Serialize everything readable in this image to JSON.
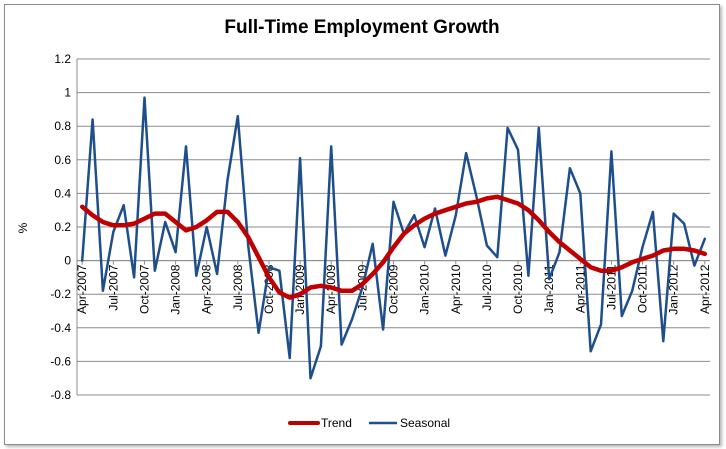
{
  "chart_data": {
    "type": "line",
    "title": "Full-Time Employment Growth",
    "xlabel": "",
    "ylabel": "%",
    "ylim": [
      -0.8,
      1.2
    ],
    "yticks": [
      -0.8,
      -0.6,
      -0.4,
      -0.2,
      0,
      0.2,
      0.4,
      0.6,
      0.8,
      1,
      1.2
    ],
    "ytick_labels": [
      "-0.8",
      "-0.6",
      "-0.4",
      "-0.2",
      "0",
      "0.2",
      "0.4",
      "0.6",
      "0.8",
      "1",
      "1.2"
    ],
    "grid": "horizontal",
    "legend_position": "bottom",
    "x": [
      "Apr-2007",
      "May-2007",
      "Jun-2007",
      "Jul-2007",
      "Aug-2007",
      "Sep-2007",
      "Oct-2007",
      "Nov-2007",
      "Dec-2007",
      "Jan-2008",
      "Feb-2008",
      "Mar-2008",
      "Apr-2008",
      "May-2008",
      "Jun-2008",
      "Jul-2008",
      "Aug-2008",
      "Sep-2008",
      "Oct-2008",
      "Nov-2008",
      "Dec-2008",
      "Jan-2009",
      "Feb-2009",
      "Mar-2009",
      "Apr-2009",
      "May-2009",
      "Jun-2009",
      "Jul-2009",
      "Aug-2009",
      "Sep-2009",
      "Oct-2009",
      "Nov-2009",
      "Dec-2009",
      "Jan-2010",
      "Feb-2010",
      "Mar-2010",
      "Apr-2010",
      "May-2010",
      "Jun-2010",
      "Jul-2010",
      "Aug-2010",
      "Sep-2010",
      "Oct-2010",
      "Nov-2010",
      "Dec-2010",
      "Jan-2011",
      "Feb-2011",
      "Mar-2011",
      "Apr-2011",
      "May-2011",
      "Jun-2011",
      "Jul-2011",
      "Aug-2011",
      "Sep-2011",
      "Oct-2011",
      "Nov-2011",
      "Dec-2011",
      "Jan-2012",
      "Feb-2012",
      "Mar-2012",
      "Apr-2012"
    ],
    "xtick_labels": [
      "Apr-2007",
      "Jul-2007",
      "Oct-2007",
      "Jan-2008",
      "Apr-2008",
      "Jul-2008",
      "Oct-2008",
      "Jan-2009",
      "Apr-2009",
      "Jul-2009",
      "Oct-2009",
      "Jan-2010",
      "Apr-2010",
      "Jul-2010",
      "Oct-2010",
      "Jan-2011",
      "Apr-2011",
      "Jul-2011",
      "Oct-2011",
      "Jan-2012",
      "Apr-2012"
    ],
    "series": [
      {
        "name": "Trend",
        "color": "#c00000",
        "values": [
          0.32,
          0.27,
          0.23,
          0.21,
          0.21,
          0.22,
          0.25,
          0.28,
          0.28,
          0.23,
          0.18,
          0.2,
          0.24,
          0.29,
          0.29,
          0.23,
          0.14,
          0.02,
          -0.1,
          -0.19,
          -0.22,
          -0.2,
          -0.16,
          -0.15,
          -0.16,
          -0.18,
          -0.18,
          -0.14,
          -0.08,
          -0.01,
          0.08,
          0.16,
          0.21,
          0.25,
          0.28,
          0.3,
          0.32,
          0.34,
          0.35,
          0.37,
          0.38,
          0.36,
          0.34,
          0.3,
          0.24,
          0.17,
          0.11,
          0.06,
          0.01,
          -0.04,
          -0.06,
          -0.06,
          -0.04,
          -0.01,
          0.01,
          0.03,
          0.06,
          0.07,
          0.07,
          0.06,
          0.04
        ]
      },
      {
        "name": "Seasonal",
        "color": "#1f4e8c",
        "values": [
          0,
          0.84,
          -0.18,
          0.17,
          0.33,
          -0.1,
          0.97,
          -0.06,
          0.23,
          0.05,
          0.68,
          -0.09,
          0.2,
          -0.08,
          0.48,
          0.86,
          0.09,
          -0.43,
          -0.04,
          -0.06,
          -0.58,
          0.61,
          -0.7,
          -0.51,
          0.68,
          -0.5,
          -0.35,
          -0.16,
          0.1,
          -0.41,
          0.35,
          0.16,
          0.27,
          0.08,
          0.31,
          0.03,
          0.27,
          0.64,
          0.38,
          0.09,
          0.02,
          0.79,
          0.66,
          -0.09,
          0.79,
          -0.11,
          0.05,
          0.55,
          0.4,
          -0.54,
          -0.38,
          0.65,
          -0.33,
          -0.18,
          0.08,
          0.29,
          -0.48,
          0.28,
          0.22,
          -0.03,
          0.13
        ]
      }
    ]
  }
}
